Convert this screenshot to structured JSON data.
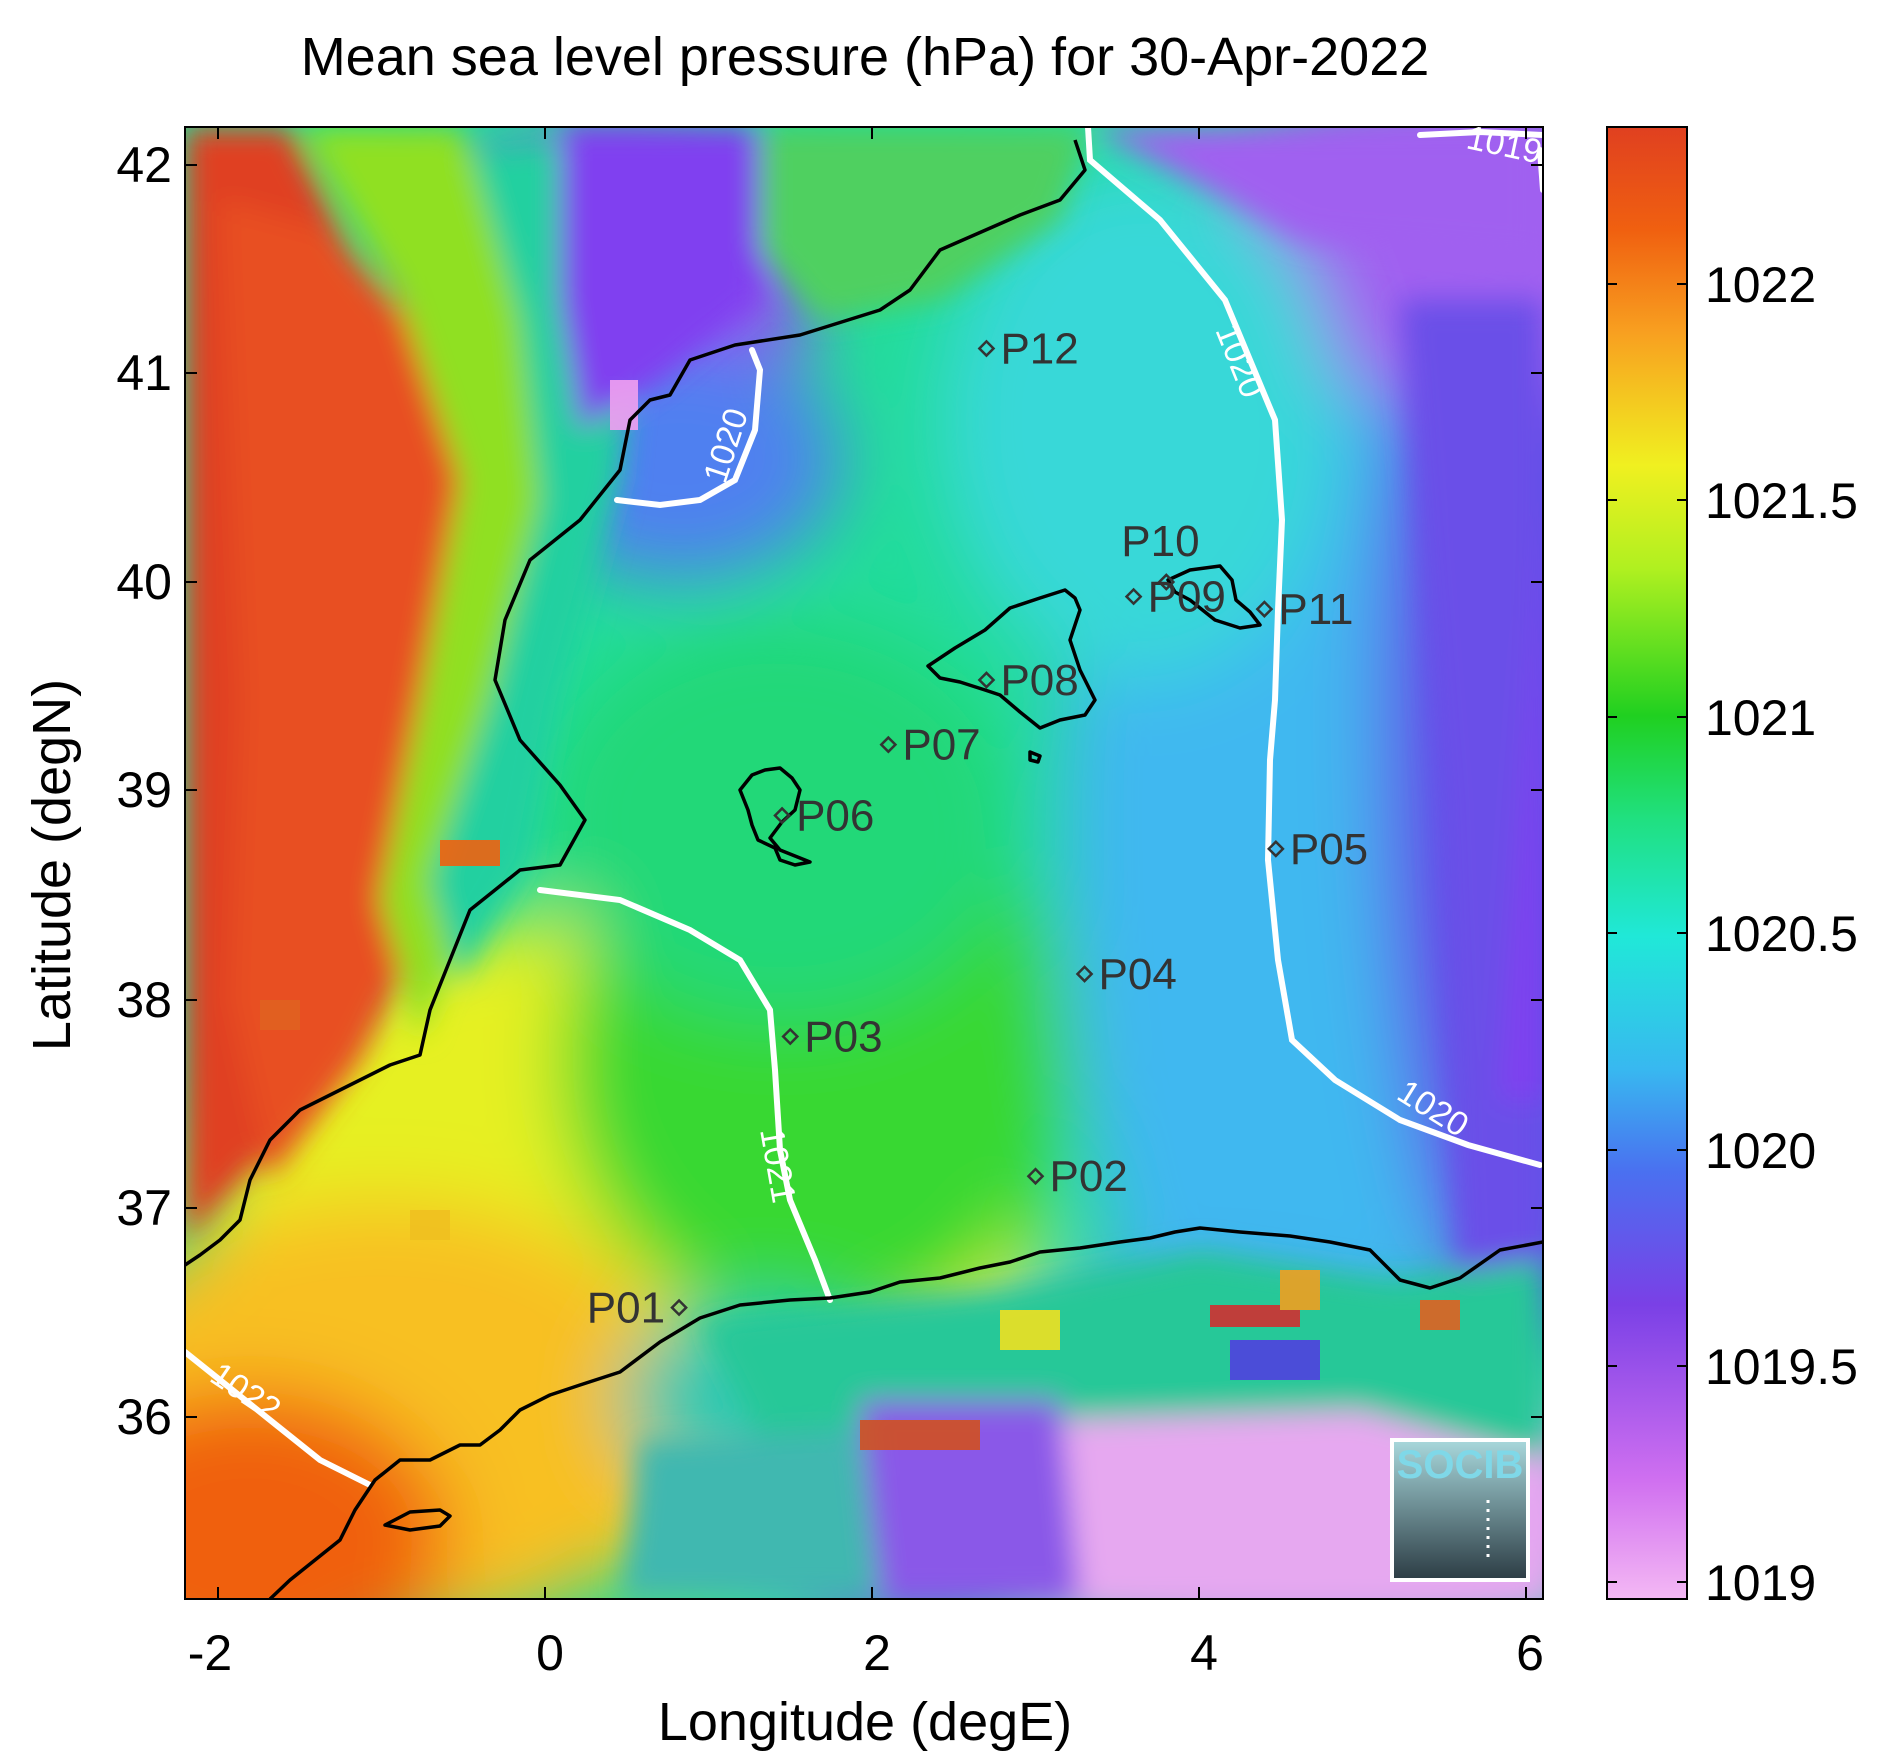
{
  "title": "Mean sea level pressure (hPa) for 30-Apr-2022",
  "xlabel": "Longitude (degE)",
  "ylabel": "Latitude (degN)",
  "x_ticks": [
    "-2",
    "0",
    "2",
    "4",
    "6"
  ],
  "y_ticks": [
    "42",
    "41",
    "40",
    "39",
    "38",
    "37",
    "36"
  ],
  "colorbar_ticks": [
    "1022",
    "1021.5",
    "1021",
    "1020.5",
    "1020",
    "1019.5",
    "1019"
  ],
  "contour_labels": [
    "1019",
    "1020",
    "1020",
    "1020",
    "1021",
    "1022"
  ],
  "stations": [
    {
      "name": "P01",
      "lon": 0.82,
      "lat": 36.52
    },
    {
      "name": "P02",
      "lon": 3.0,
      "lat": 37.15
    },
    {
      "name": "P03",
      "lon": 1.5,
      "lat": 37.82
    },
    {
      "name": "P04",
      "lon": 3.3,
      "lat": 38.12
    },
    {
      "name": "P05",
      "lon": 4.47,
      "lat": 38.72
    },
    {
      "name": "P06",
      "lon": 1.45,
      "lat": 38.88
    },
    {
      "name": "P07",
      "lon": 2.1,
      "lat": 39.22
    },
    {
      "name": "P08",
      "lon": 2.7,
      "lat": 39.53
    },
    {
      "name": "P09",
      "lon": 3.6,
      "lat": 39.93
    },
    {
      "name": "P10",
      "lon": 3.8,
      "lat": 40.0
    },
    {
      "name": "P11",
      "lon": 4.4,
      "lat": 39.87
    },
    {
      "name": "P12",
      "lon": 2.7,
      "lat": 41.12
    }
  ],
  "logo": "SOCIB",
  "colors": {
    "colormap": [
      "#f4b8f4",
      "#c040f0",
      "#7040e0",
      "#3a90f0",
      "#20e8e8",
      "#20e090",
      "#20d020",
      "#a8f020",
      "#f0f020",
      "#f8b020",
      "#f06010",
      "#e04020"
    ],
    "contour": "#ffffff",
    "coast": "#000000",
    "station_marker": "#333333"
  },
  "chart_data": {
    "type": "heatmap",
    "title": "Mean sea level pressure (hPa) for 30-Apr-2022",
    "xlabel": "Longitude (degE)",
    "ylabel": "Latitude (degN)",
    "xlim": [
      -2.2,
      6.1
    ],
    "ylim": [
      35.2,
      42.2
    ],
    "colorbar": {
      "label": "",
      "range": [
        1019,
        1022.4
      ],
      "ticks": [
        1019,
        1019.5,
        1020,
        1020.5,
        1021,
        1021.5,
        1022
      ]
    },
    "contours": [
      {
        "level": 1019,
        "label": "1019"
      },
      {
        "level": 1020,
        "label": "1020"
      },
      {
        "level": 1021,
        "label": "1021"
      },
      {
        "level": 1022,
        "label": "1022"
      }
    ]
  }
}
